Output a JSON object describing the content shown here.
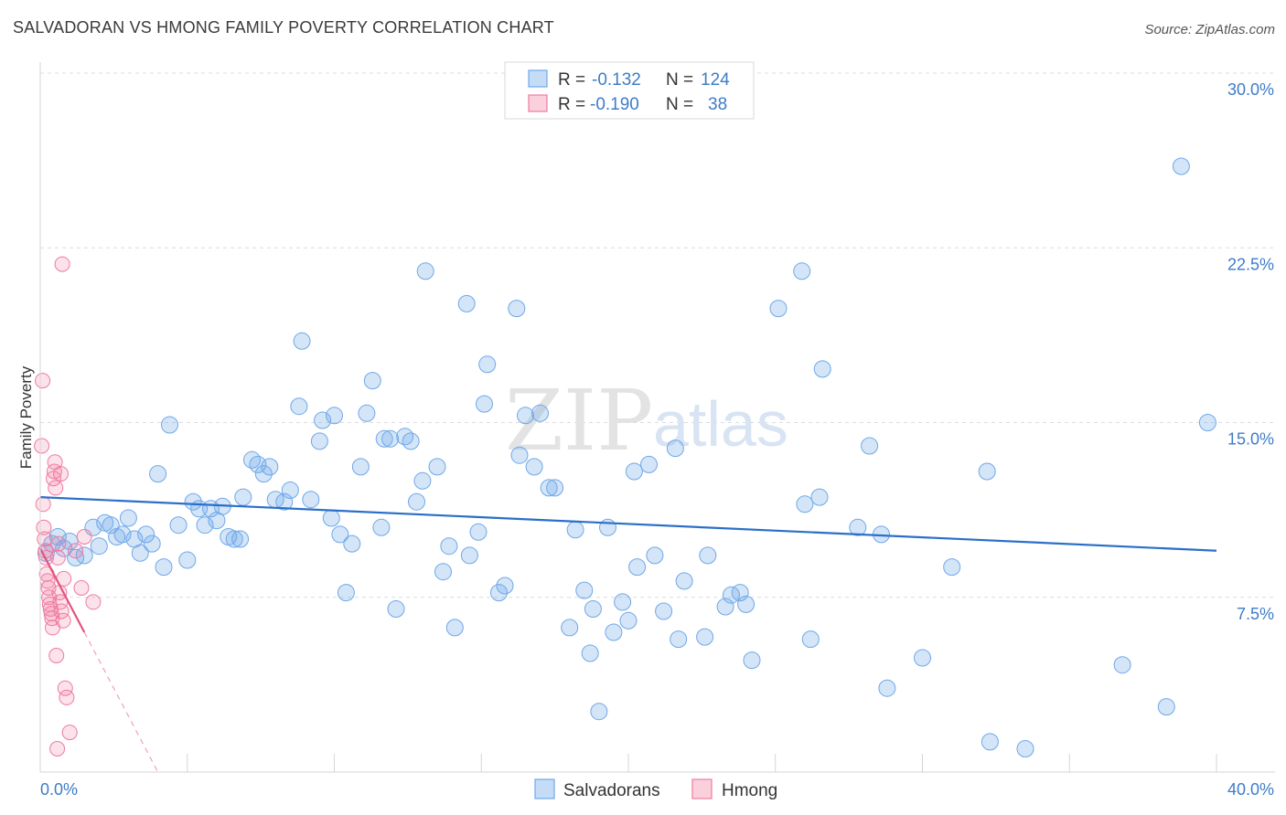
{
  "title": "SALVADORAN VS HMONG FAMILY POVERTY CORRELATION CHART",
  "source": "Source: ZipAtlas.com",
  "watermark": {
    "part1": "ZIP",
    "part2": "atlas"
  },
  "legend": {
    "rows": [
      {
        "r_label": "R =",
        "r_value": "-0.132",
        "n_label": "N =",
        "n_value": "124",
        "color": "#6fa8e8"
      },
      {
        "r_label": "R =",
        "r_value": "-0.190",
        "n_label": "N =",
        "n_value": "38",
        "color": "#f07aa0"
      }
    ]
  },
  "bottom_legend": [
    {
      "label": "Salvadorans",
      "color": "#6fa8e8"
    },
    {
      "label": "Hmong",
      "color": "#f07aa0"
    }
  ],
  "chart_data": {
    "type": "scatter",
    "title": "SALVADORAN VS HMONG FAMILY POVERTY CORRELATION CHART",
    "xlabel": "",
    "ylabel": "Family Poverty",
    "xlim": [
      0,
      40
    ],
    "ylim": [
      0,
      30
    ],
    "x_tick_labels": [
      "0.0%",
      "40.0%"
    ],
    "y_ticks": [
      7.5,
      15.0,
      22.5,
      30.0
    ],
    "y_tick_labels": [
      "7.5%",
      "15.0%",
      "22.5%",
      "30.0%"
    ],
    "grid": true,
    "legend_position": "top-center",
    "series": [
      {
        "name": "Salvadorans",
        "color": "#6fa8e8",
        "trend": {
          "x": [
            0,
            40
          ],
          "y": [
            11.8,
            9.5
          ]
        },
        "points": [
          [
            0.2,
            9.4
          ],
          [
            0.4,
            9.8
          ],
          [
            0.6,
            10.1
          ],
          [
            0.8,
            9.6
          ],
          [
            1.0,
            9.9
          ],
          [
            1.2,
            9.2
          ],
          [
            1.5,
            9.3
          ],
          [
            1.8,
            10.5
          ],
          [
            2.0,
            9.7
          ],
          [
            2.2,
            10.7
          ],
          [
            2.4,
            10.6
          ],
          [
            2.6,
            10.1
          ],
          [
            2.8,
            10.2
          ],
          [
            3.0,
            10.9
          ],
          [
            3.2,
            10.0
          ],
          [
            3.4,
            9.4
          ],
          [
            3.6,
            10.2
          ],
          [
            3.8,
            9.8
          ],
          [
            4.0,
            12.8
          ],
          [
            4.2,
            8.8
          ],
          [
            4.4,
            14.9
          ],
          [
            4.7,
            10.6
          ],
          [
            5.0,
            9.1
          ],
          [
            5.2,
            11.6
          ],
          [
            5.4,
            11.3
          ],
          [
            5.6,
            10.6
          ],
          [
            5.8,
            11.3
          ],
          [
            6.0,
            10.8
          ],
          [
            6.2,
            11.4
          ],
          [
            6.4,
            10.1
          ],
          [
            6.6,
            10.0
          ],
          [
            6.8,
            10.0
          ],
          [
            6.9,
            11.8
          ],
          [
            7.2,
            13.4
          ],
          [
            7.4,
            13.2
          ],
          [
            7.6,
            12.8
          ],
          [
            7.8,
            13.1
          ],
          [
            8.0,
            11.7
          ],
          [
            8.3,
            11.6
          ],
          [
            8.5,
            12.1
          ],
          [
            8.8,
            15.7
          ],
          [
            8.9,
            18.5
          ],
          [
            9.2,
            11.7
          ],
          [
            9.5,
            14.2
          ],
          [
            9.6,
            15.1
          ],
          [
            9.9,
            10.9
          ],
          [
            10.0,
            15.3
          ],
          [
            10.2,
            10.2
          ],
          [
            10.4,
            7.7
          ],
          [
            10.6,
            9.8
          ],
          [
            10.9,
            13.1
          ],
          [
            11.1,
            15.4
          ],
          [
            11.3,
            16.8
          ],
          [
            11.6,
            10.5
          ],
          [
            11.7,
            14.3
          ],
          [
            11.9,
            14.3
          ],
          [
            12.1,
            7.0
          ],
          [
            12.4,
            14.4
          ],
          [
            12.6,
            14.2
          ],
          [
            12.8,
            11.6
          ],
          [
            13.0,
            12.5
          ],
          [
            13.1,
            21.5
          ],
          [
            13.5,
            13.1
          ],
          [
            13.7,
            8.6
          ],
          [
            13.9,
            9.7
          ],
          [
            14.1,
            6.2
          ],
          [
            14.5,
            20.1
          ],
          [
            14.6,
            9.3
          ],
          [
            14.9,
            10.3
          ],
          [
            15.1,
            15.8
          ],
          [
            15.2,
            17.5
          ],
          [
            15.6,
            7.7
          ],
          [
            15.8,
            8.0
          ],
          [
            16.2,
            19.9
          ],
          [
            16.3,
            13.6
          ],
          [
            16.5,
            15.3
          ],
          [
            16.8,
            13.1
          ],
          [
            17.0,
            15.4
          ],
          [
            17.3,
            12.2
          ],
          [
            17.5,
            12.2
          ],
          [
            18.0,
            6.2
          ],
          [
            18.2,
            10.4
          ],
          [
            18.5,
            7.8
          ],
          [
            18.7,
            5.1
          ],
          [
            18.8,
            7.0
          ],
          [
            19.0,
            2.6
          ],
          [
            19.3,
            10.5
          ],
          [
            19.5,
            6.0
          ],
          [
            19.8,
            7.3
          ],
          [
            20.0,
            6.5
          ],
          [
            20.2,
            12.9
          ],
          [
            20.3,
            8.8
          ],
          [
            20.7,
            13.2
          ],
          [
            20.9,
            9.3
          ],
          [
            21.2,
            6.9
          ],
          [
            21.6,
            13.9
          ],
          [
            21.7,
            5.7
          ],
          [
            21.9,
            8.2
          ],
          [
            22.6,
            5.8
          ],
          [
            22.7,
            9.3
          ],
          [
            23.3,
            7.1
          ],
          [
            23.5,
            7.6
          ],
          [
            23.8,
            7.7
          ],
          [
            24.0,
            7.2
          ],
          [
            24.2,
            4.8
          ],
          [
            25.1,
            19.9
          ],
          [
            25.9,
            21.5
          ],
          [
            26.0,
            11.5
          ],
          [
            26.2,
            5.7
          ],
          [
            26.5,
            11.8
          ],
          [
            26.6,
            17.3
          ],
          [
            27.8,
            10.5
          ],
          [
            28.2,
            14.0
          ],
          [
            28.6,
            10.2
          ],
          [
            28.8,
            3.6
          ],
          [
            30.0,
            4.9
          ],
          [
            31.0,
            8.8
          ],
          [
            32.2,
            12.9
          ],
          [
            32.3,
            1.3
          ],
          [
            33.5,
            1.0
          ],
          [
            36.8,
            4.6
          ],
          [
            38.3,
            2.8
          ],
          [
            38.8,
            26.0
          ],
          [
            39.7,
            15.0
          ]
        ]
      },
      {
        "name": "Hmong",
        "color": "#f07aa0",
        "trend": {
          "x": [
            0,
            1.5
          ],
          "y": [
            9.6,
            6.0
          ]
        },
        "trend_extension": {
          "x": [
            1.5,
            4.0
          ],
          "y": [
            6.0,
            0.0
          ]
        },
        "points": [
          [
            0.05,
            14.0
          ],
          [
            0.08,
            16.8
          ],
          [
            0.1,
            11.5
          ],
          [
            0.12,
            10.5
          ],
          [
            0.15,
            10.0
          ],
          [
            0.18,
            9.5
          ],
          [
            0.2,
            9.2
          ],
          [
            0.22,
            8.5
          ],
          [
            0.25,
            8.2
          ],
          [
            0.28,
            7.9
          ],
          [
            0.3,
            7.5
          ],
          [
            0.32,
            7.2
          ],
          [
            0.35,
            7.0
          ],
          [
            0.38,
            6.8
          ],
          [
            0.4,
            6.6
          ],
          [
            0.42,
            6.2
          ],
          [
            0.45,
            12.6
          ],
          [
            0.48,
            12.9
          ],
          [
            0.5,
            13.3
          ],
          [
            0.52,
            12.2
          ],
          [
            0.55,
            5.0
          ],
          [
            0.58,
            1.0
          ],
          [
            0.6,
            9.2
          ],
          [
            0.62,
            9.8
          ],
          [
            0.65,
            7.7
          ],
          [
            0.68,
            7.3
          ],
          [
            0.7,
            12.8
          ],
          [
            0.72,
            6.9
          ],
          [
            0.75,
            21.8
          ],
          [
            0.78,
            6.5
          ],
          [
            0.8,
            8.3
          ],
          [
            0.85,
            3.6
          ],
          [
            0.9,
            3.2
          ],
          [
            1.0,
            1.7
          ],
          [
            1.2,
            9.5
          ],
          [
            1.4,
            7.9
          ],
          [
            1.5,
            10.1
          ],
          [
            1.8,
            7.3
          ]
        ]
      }
    ]
  }
}
